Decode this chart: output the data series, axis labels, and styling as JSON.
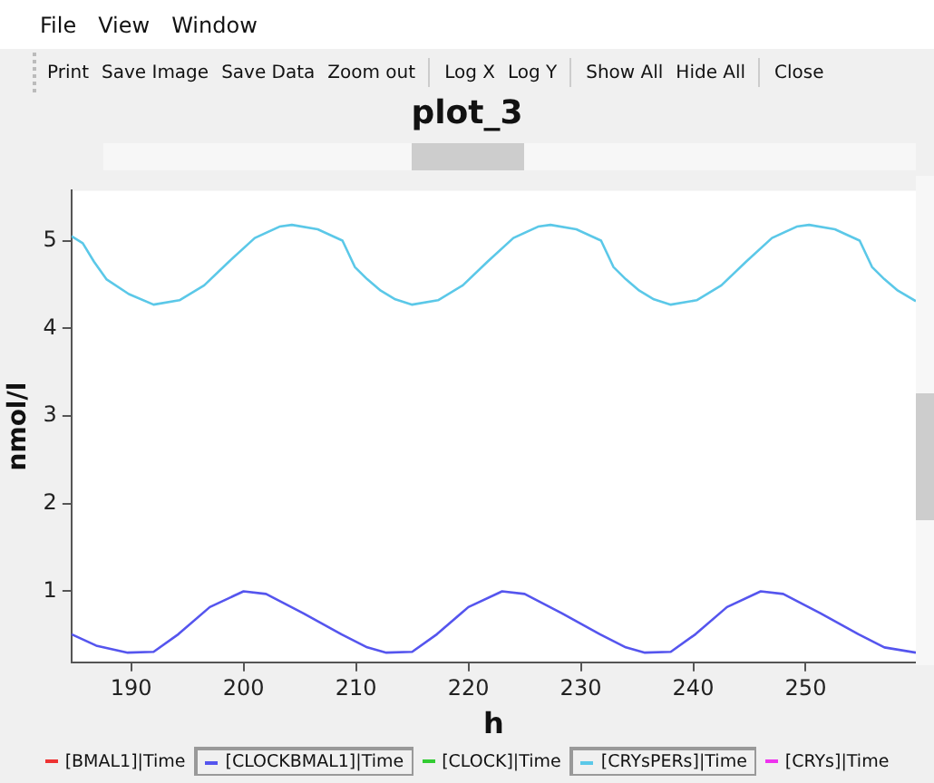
{
  "chart_data": {
    "type": "line",
    "title": "plot_3",
    "xlabel": "h",
    "ylabel": "nmol/l",
    "annotations": [
      "File",
      "View",
      "Window",
      "Print",
      "Save Image",
      "Save Data",
      "Zoom out",
      "Log X",
      "Log Y",
      "Show All",
      "Hide All",
      "Close"
    ],
    "xlim": [
      184.7,
      259.8
    ],
    "xticks": [
      190,
      200,
      210,
      220,
      230,
      240,
      250
    ],
    "ylim": [
      0.19,
      5.57
    ],
    "yticks": [
      1,
      2,
      3,
      4,
      5
    ],
    "grid": false,
    "legend": "bottom",
    "marker": "none",
    "line_style": "solid",
    "series": [
      {
        "name": "[BMAL1]|Time",
        "color": "#ee3333"
      },
      {
        "name": "[CLOCKBMAL1]|Time",
        "color": "#5555ee",
        "x": [
          184.7,
          186.9,
          189.7,
          192.0,
          194.2,
          197.0,
          200.0,
          202.0,
          205.3,
          208.7,
          211.0,
          212.7,
          215.0,
          217.2,
          220.0,
          223.0,
          225.0,
          228.3,
          231.7,
          234.0,
          235.7,
          238.0,
          240.2,
          243.0,
          246.0,
          248.0,
          251.3,
          254.7,
          257.0,
          259.8
        ],
        "values": [
          0.51,
          0.38,
          0.3,
          0.31,
          0.51,
          0.82,
          1.0,
          0.97,
          0.75,
          0.51,
          0.36,
          0.3,
          0.31,
          0.51,
          0.82,
          1.0,
          0.97,
          0.75,
          0.51,
          0.36,
          0.3,
          0.31,
          0.51,
          0.82,
          1.0,
          0.97,
          0.75,
          0.51,
          0.36,
          0.3
        ]
      },
      {
        "name": "[CLOCK]|Time",
        "color": "#33cc33"
      },
      {
        "name": "[CRYsPERs]|Time",
        "color": "#5bc8e8",
        "x": [
          184.7,
          185.7,
          186.7,
          187.8,
          189.8,
          192.0,
          194.3,
          196.5,
          198.7,
          201.0,
          203.2,
          204.3,
          206.6,
          208.8,
          209.9,
          211.0,
          212.2,
          213.5,
          215.0,
          217.3,
          219.5,
          221.7,
          224.0,
          226.2,
          227.3,
          229.6,
          231.8,
          232.9,
          234.0,
          235.2,
          236.5,
          238.0,
          240.3,
          242.5,
          244.7,
          247.0,
          249.2,
          250.3,
          252.6,
          254.8,
          255.9,
          257.0,
          258.2,
          259.8
        ],
        "values": [
          5.05,
          4.97,
          4.76,
          4.56,
          4.39,
          4.27,
          4.32,
          4.49,
          4.76,
          5.03,
          5.16,
          5.18,
          5.13,
          5.0,
          4.7,
          4.56,
          4.43,
          4.33,
          4.27,
          4.32,
          4.49,
          4.76,
          5.03,
          5.16,
          5.18,
          5.13,
          5.0,
          4.7,
          4.56,
          4.43,
          4.33,
          4.27,
          4.32,
          4.49,
          4.76,
          5.03,
          5.16,
          5.18,
          5.13,
          5.0,
          4.7,
          4.56,
          4.43,
          4.31
        ]
      },
      {
        "name": "[CRYs]|Time",
        "color": "#ee33ee"
      }
    ]
  }
}
